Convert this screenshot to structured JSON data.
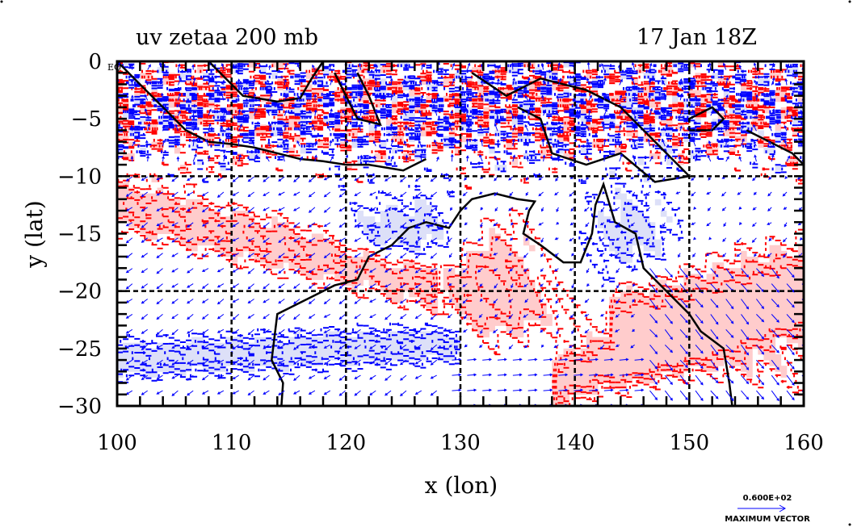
{
  "header": {
    "title": "uv zetaa 200 mb",
    "valid_time": "17 Jan 18Z"
  },
  "chart_data": {
    "type": "map",
    "title": "uv zetaa 200 mb",
    "subtitle": "17 Jan 18Z",
    "xlabel": "x (lon)",
    "ylabel": "y (lat)",
    "xlim": [
      100,
      160
    ],
    "ylim": [
      -30,
      0
    ],
    "x_ticks": [
      "100",
      "110",
      "120",
      "130",
      "140",
      "150",
      "160"
    ],
    "y_ticks": [
      "0",
      "−5",
      "−10",
      "−15",
      "−20",
      "−25",
      "−30"
    ],
    "x_tick_values": [
      100,
      110,
      120,
      130,
      140,
      150,
      160
    ],
    "y_tick_values": [
      0,
      -5,
      -10,
      -15,
      -20,
      -25,
      -30
    ],
    "gridlines_lon": [
      110,
      120,
      130,
      140,
      150
    ],
    "gridlines_lat": [
      -10,
      -20
    ],
    "equator_label": "EQ",
    "fields": [
      {
        "name": "wind vectors (uv)",
        "color": "#0000ff"
      },
      {
        "name": "positive absolute vorticity contours",
        "color": "#ff0000",
        "fill": "#ffcccc"
      },
      {
        "name": "negative absolute vorticity contours",
        "color": "#0000ff",
        "fill": "#dde0f8"
      },
      {
        "name": "coastlines",
        "color": "#000000"
      }
    ],
    "vector_legend": {
      "value": "0.600E+02",
      "label": "MAXIMUM VECTOR"
    }
  },
  "colors": {
    "positive": "#ff0000",
    "positive_fill": "#ffcccc",
    "negative": "#0000ff",
    "negative_fill": "#dde0f8",
    "coast": "#000000",
    "vector": "#0000ff"
  }
}
